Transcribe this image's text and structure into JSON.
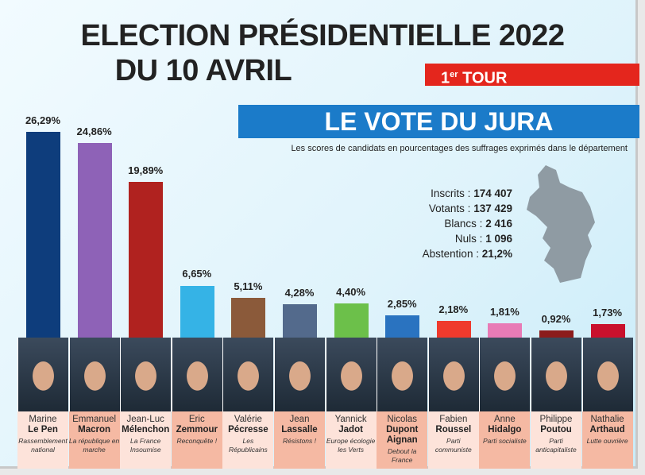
{
  "title_line1": "ELECTION PRÉSIDENTIELLE 2022",
  "title_line2": "DU 10 AVRIL",
  "tour_number": "1",
  "tour_suffix": "er",
  "tour_label": "TOUR",
  "department_title": "LE VOTE DU JURA",
  "subtitle": "Les scores de candidats en pourcentages des suffrages exprimés dans le département",
  "stats": [
    {
      "label": "Inscrits :",
      "value": "174 407"
    },
    {
      "label": "Votants :",
      "value": "137 429"
    },
    {
      "label": "Blancs :",
      "value": "2 416"
    },
    {
      "label": "Nuls :",
      "value": "1 096"
    },
    {
      "label": "Abstention :",
      "value": "21,2%"
    }
  ],
  "chart_data": {
    "type": "bar",
    "categories": [
      "Le Pen",
      "Macron",
      "Mélenchon",
      "Zemmour",
      "Pécresse",
      "Lassalle",
      "Jadot",
      "Dupont Aignan",
      "Roussel",
      "Hidalgo",
      "Poutou",
      "Arthaud"
    ],
    "values": [
      26.29,
      24.86,
      19.89,
      6.65,
      5.11,
      4.28,
      4.4,
      2.85,
      2.18,
      1.81,
      0.92,
      1.73
    ],
    "labels": [
      "26,29%",
      "24,86%",
      "19,89%",
      "6,65%",
      "5,11%",
      "4,28%",
      "4,40%",
      "2,85%",
      "2,18%",
      "1,81%",
      "0,92%",
      "1,73%"
    ]
  },
  "candidates": [
    {
      "first": "Marine",
      "last": "Le Pen",
      "party": "Rassemblement national",
      "color": "#0e3d7c"
    },
    {
      "first": "Emmanuel",
      "last": "Macron",
      "party": "La république en marche",
      "color": "#8e62b7"
    },
    {
      "first": "Jean-Luc",
      "last": "Mélenchon",
      "party": "La France Insoumise",
      "color": "#b0221f"
    },
    {
      "first": "Eric",
      "last": "Zemmour",
      "party": "Reconquête !",
      "color": "#35b3e6"
    },
    {
      "first": "Valérie",
      "last": "Pécresse",
      "party": "Les Républicains",
      "color": "#8b5a3a"
    },
    {
      "first": "Jean",
      "last": "Lassalle",
      "party": "Résistons !",
      "color": "#536a8c"
    },
    {
      "first": "Yannick",
      "last": "Jadot",
      "party": "Europe écologie les Verts",
      "color": "#6cc04a"
    },
    {
      "first": "Nicolas",
      "last": "Dupont Aignan",
      "party": "Debout la France",
      "color": "#2a73c0"
    },
    {
      "first": "Fabien",
      "last": "Roussel",
      "party": "Parti communiste",
      "color": "#ef3a2d"
    },
    {
      "first": "Anne",
      "last": "Hidalgo",
      "party": "Parti socialiste",
      "color": "#e87bb6"
    },
    {
      "first": "Philippe",
      "last": "Poutou",
      "party": "Parti anticapitaliste",
      "color": "#8c1c1c"
    },
    {
      "first": "Nathalie",
      "last": "Arthaud",
      "party": "Lutte ouvrière",
      "color": "#c9112d"
    }
  ]
}
